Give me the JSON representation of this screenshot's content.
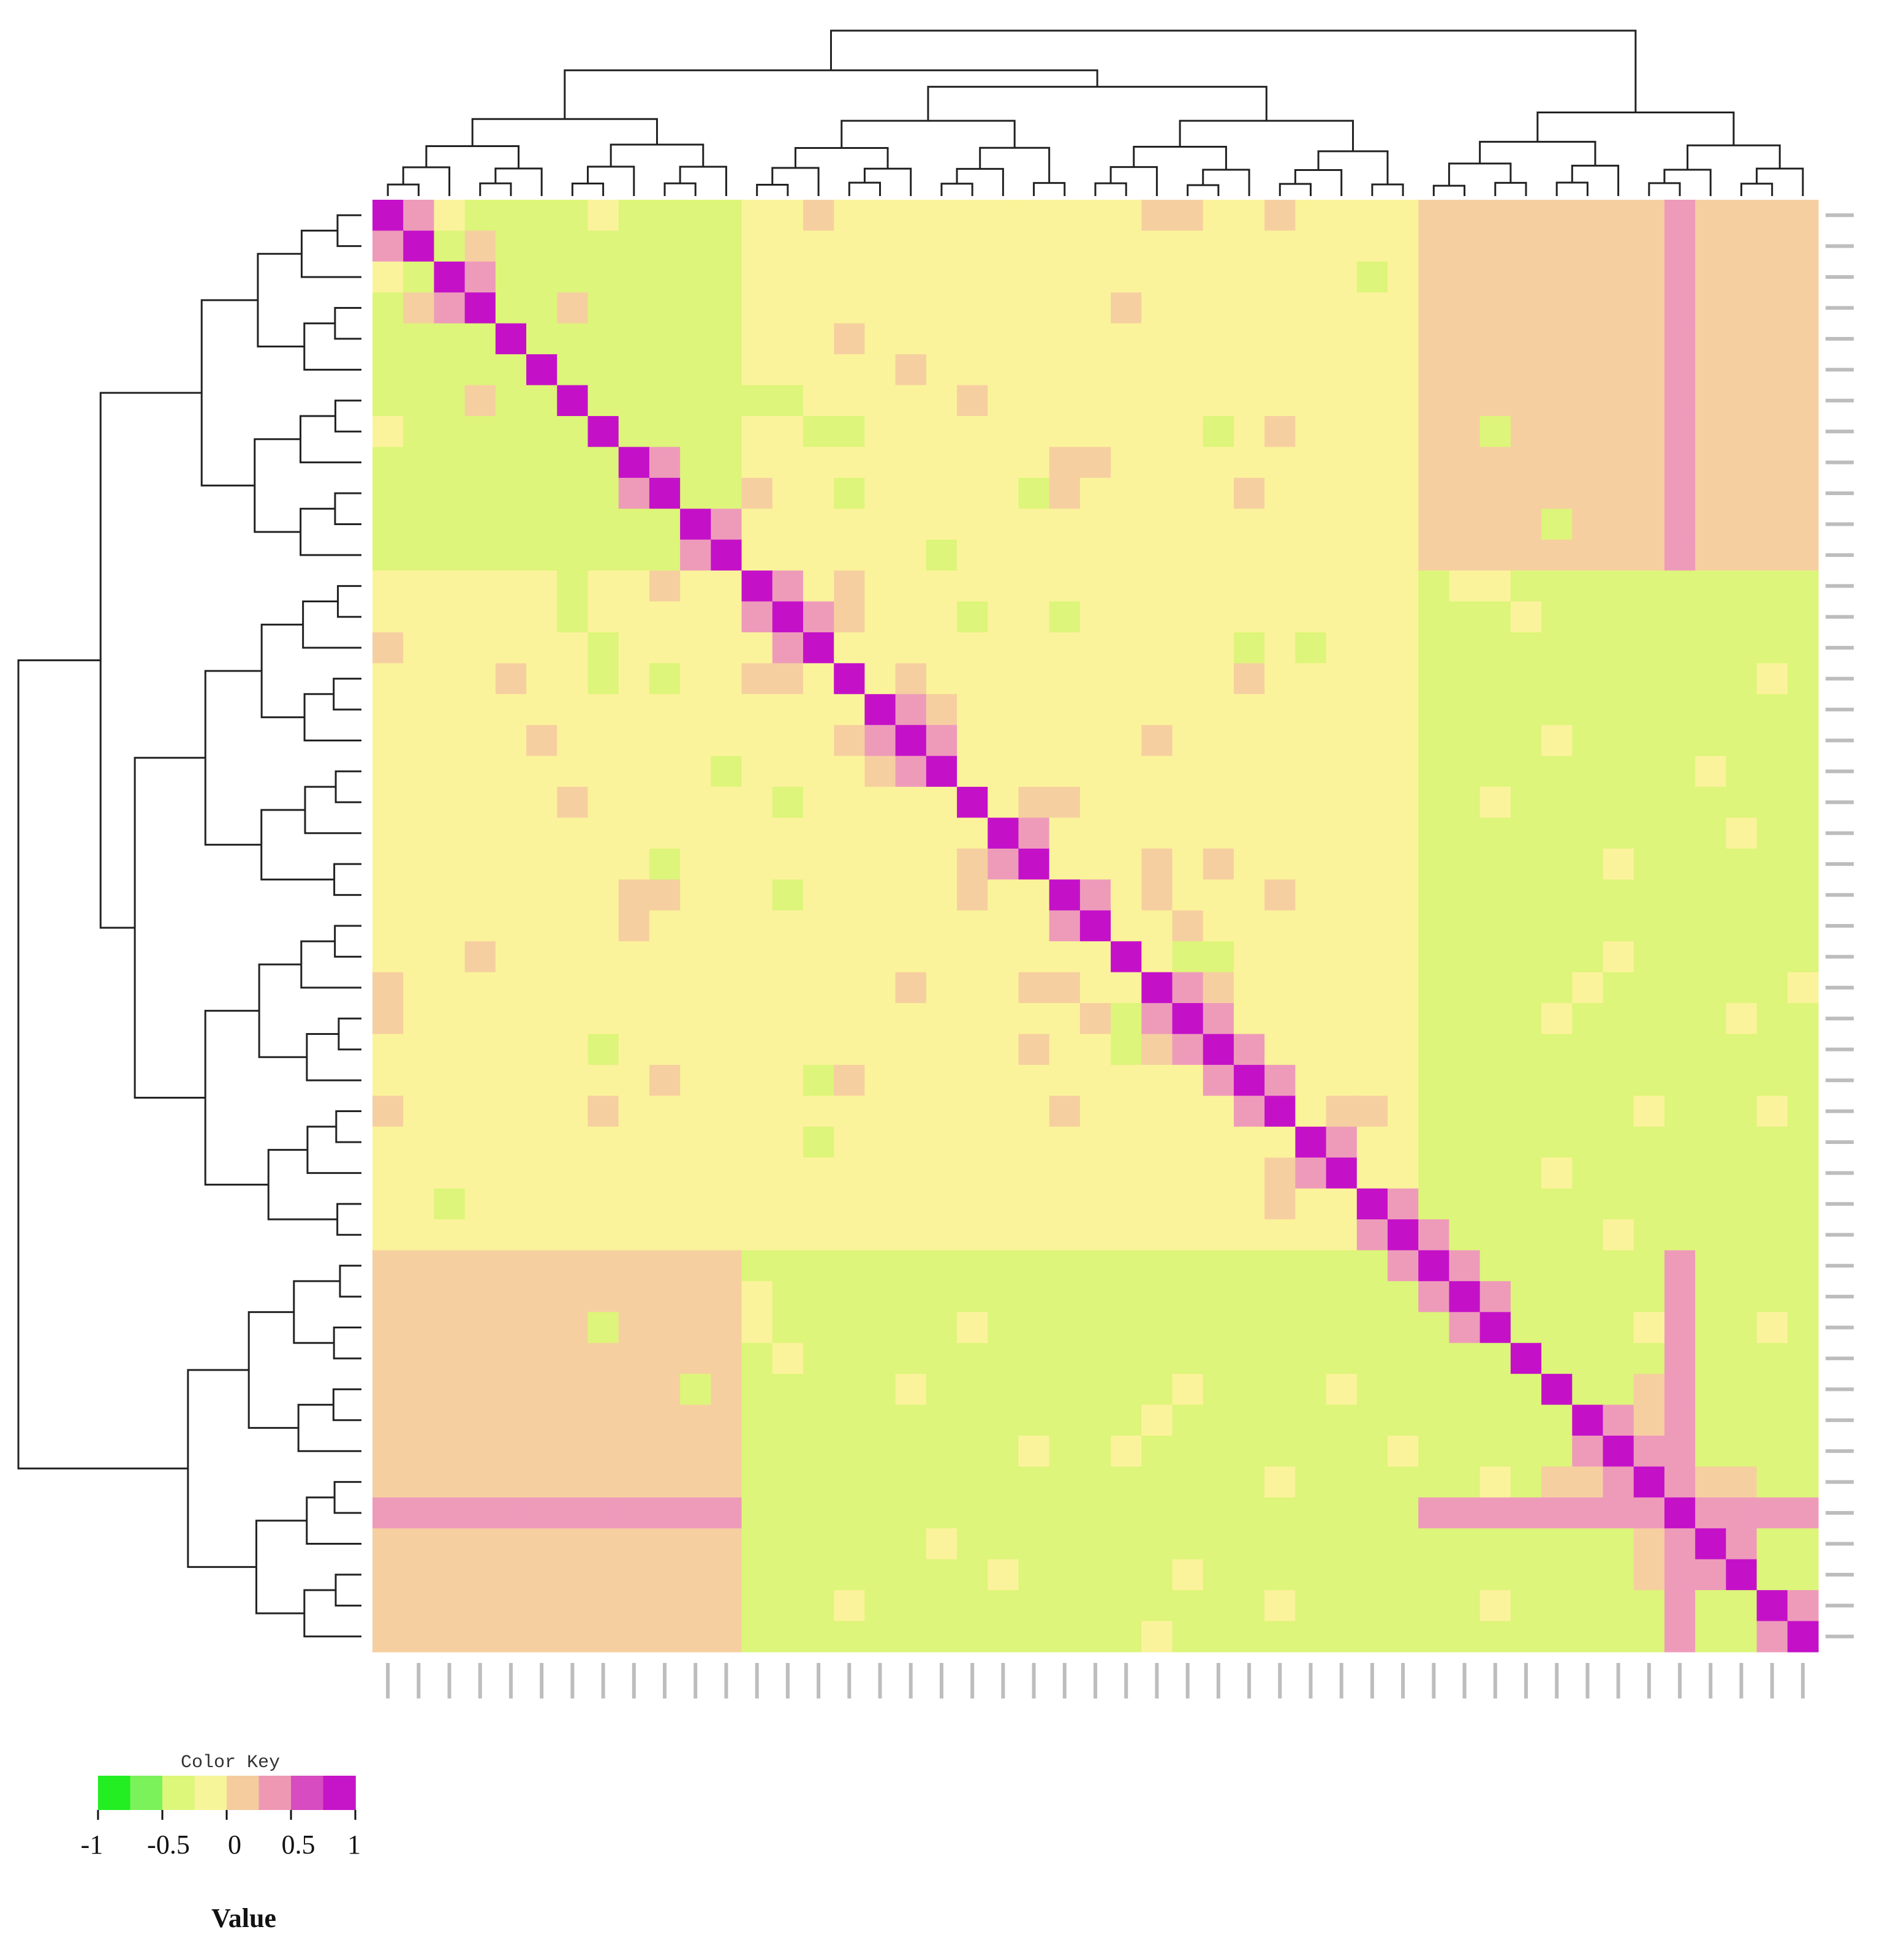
{
  "chart_data": {
    "type": "heatmap",
    "title": "",
    "n": 47,
    "values": [
      -1,
      -0.2,
      0.1,
      0.3,
      0.5,
      1
    ],
    "color_key": {
      "title": "Color Key",
      "ticks": [
        "-1",
        "-0.5",
        "0",
        "0.5",
        "1"
      ],
      "tick_values": [
        -1,
        -0.5,
        0,
        0.5,
        1
      ],
      "label": "Value",
      "range": [
        -1,
        1
      ],
      "colors": [
        "#22ee22",
        "#7cf25a",
        "#dcf77a",
        "#f6f59a",
        "#f4cc9e",
        "#ee98b4",
        "#d74cc0",
        "#c614c9"
      ]
    },
    "colors": {
      "-1": "#33ee33",
      "-0.2": "#ddf57a",
      "0.1": "#fbf39b",
      "0.3": "#f6cfa0",
      "0.5": "#ee9bba",
      "1": "#c411c8"
    },
    "blocks": {
      "A": [
        0,
        11
      ],
      "B": [
        12,
        33
      ],
      "C": [
        34,
        46
      ]
    },
    "block_values": {
      "A-A": -0.2,
      "A-C": 0.3,
      "B-B": 0.1,
      "B-C": -0.2,
      "C-C": -0.2
    },
    "annotations": "diagonal = 1; off-diagonal cells mostly within -0.5..0.5"
  },
  "axis": {
    "row_labels": [],
    "col_labels": []
  }
}
